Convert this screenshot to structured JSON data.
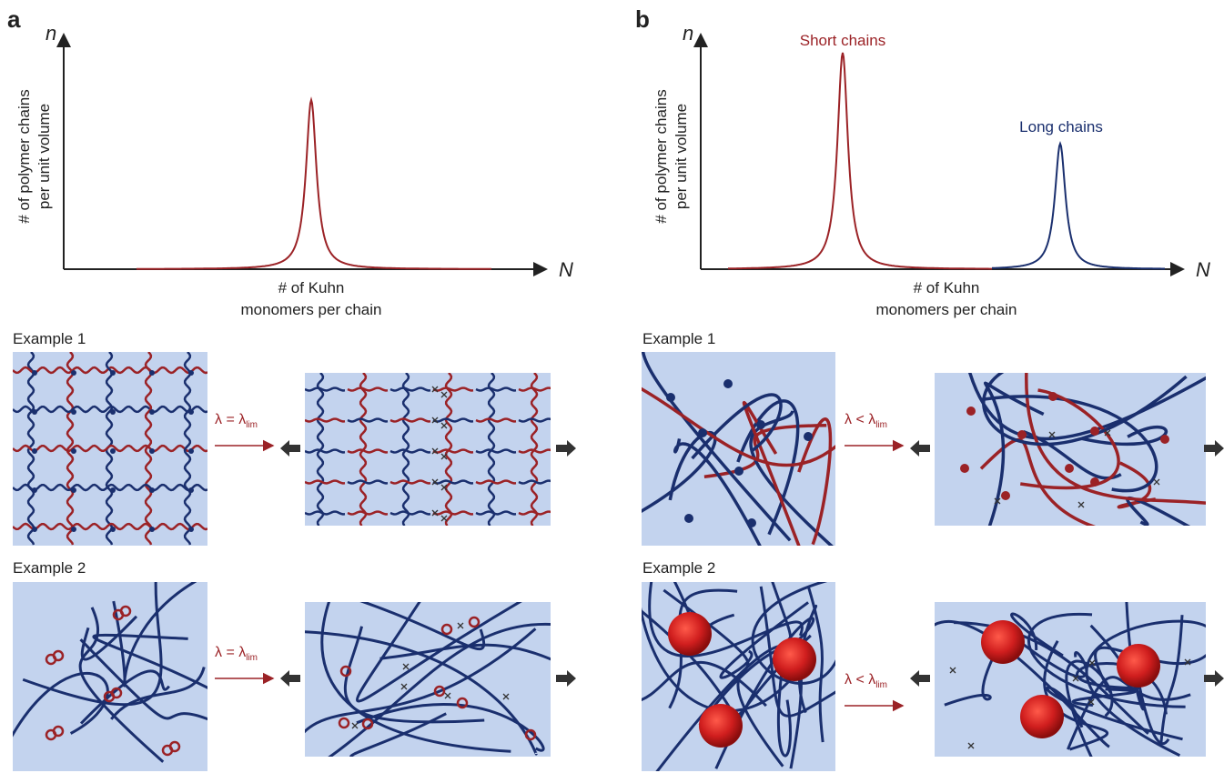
{
  "panels": [
    {
      "label": "a",
      "y_axis": {
        "symbol": "n",
        "title": [
          "# of polymer chains",
          "per unit volume"
        ]
      },
      "x_axis": {
        "symbol": "N",
        "title": [
          "# of Kuhn",
          "monomers per chain"
        ]
      },
      "peaks": [],
      "examples": [
        {
          "label": "Example 1",
          "arrow": {
            "text": "λ = λ",
            "sub": "lim"
          }
        },
        {
          "label": "Example 2",
          "arrow": {
            "text": "λ = λ",
            "sub": "lim"
          }
        }
      ]
    },
    {
      "label": "b",
      "y_axis": {
        "symbol": "n",
        "title": [
          "# of polymer chains",
          "per unit volume"
        ]
      },
      "x_axis": {
        "symbol": "N",
        "title": [
          "# of Kuhn",
          "monomers per chain"
        ]
      },
      "peaks": [
        {
          "label": "Short chains"
        },
        {
          "label": "Long chains"
        }
      ],
      "examples": [
        {
          "label": "Example 1",
          "arrow": {
            "text": "λ < λ",
            "sub": "lim"
          }
        },
        {
          "label": "Example 2",
          "arrow": {
            "text": "λ < λ",
            "sub": "lim"
          }
        }
      ]
    }
  ]
}
